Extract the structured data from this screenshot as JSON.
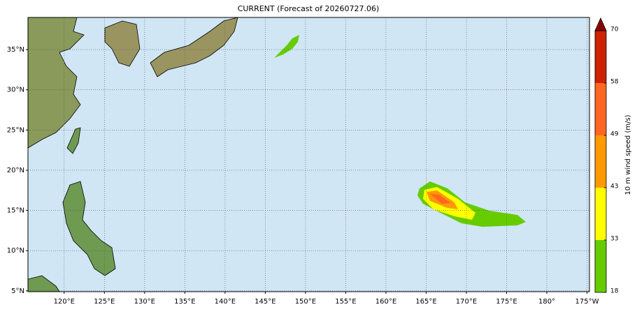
{
  "map": {
    "title": "CURRENT (Forecast of 20260727.06)",
    "lonlim": [
      115.5,
      185.3
    ],
    "latlim": [
      4.9,
      39
    ],
    "lonticks": [
      {
        "value": 120,
        "label": "120°E"
      },
      {
        "value": 125,
        "label": "125°E"
      },
      {
        "value": 130,
        "label": "130°E"
      },
      {
        "value": 135,
        "label": "135°E"
      },
      {
        "value": 140,
        "label": "140°E"
      },
      {
        "value": 145,
        "label": "145°E"
      },
      {
        "value": 150,
        "label": "150°E"
      },
      {
        "value": 155,
        "label": "155°E"
      },
      {
        "value": 160,
        "label": "160°E"
      },
      {
        "value": 165,
        "label": "165°E"
      },
      {
        "value": 170,
        "label": "170°E"
      },
      {
        "value": 175,
        "label": "175°E"
      },
      {
        "value": 180,
        "label": "180°"
      },
      {
        "value": 185,
        "label": "175°W"
      }
    ],
    "latticks": [
      {
        "value": 5,
        "label": "5°N"
      },
      {
        "value": 10,
        "label": "10°N"
      },
      {
        "value": 15,
        "label": "15°N"
      },
      {
        "value": 20,
        "label": "20°N"
      },
      {
        "value": 25,
        "label": "25°N"
      },
      {
        "value": 30,
        "label": "30°N"
      },
      {
        "value": 35,
        "label": "35°N"
      }
    ],
    "grid": true
  },
  "colorbar": {
    "label": "10 m wind speed (m/s)",
    "levels": [
      18,
      33,
      43,
      49,
      58,
      70
    ],
    "colors": [
      "#66cc00",
      "#ffff00",
      "#ff9900",
      "#ff6622",
      "#cc2200"
    ],
    "extend_color": "#8b0000"
  }
}
